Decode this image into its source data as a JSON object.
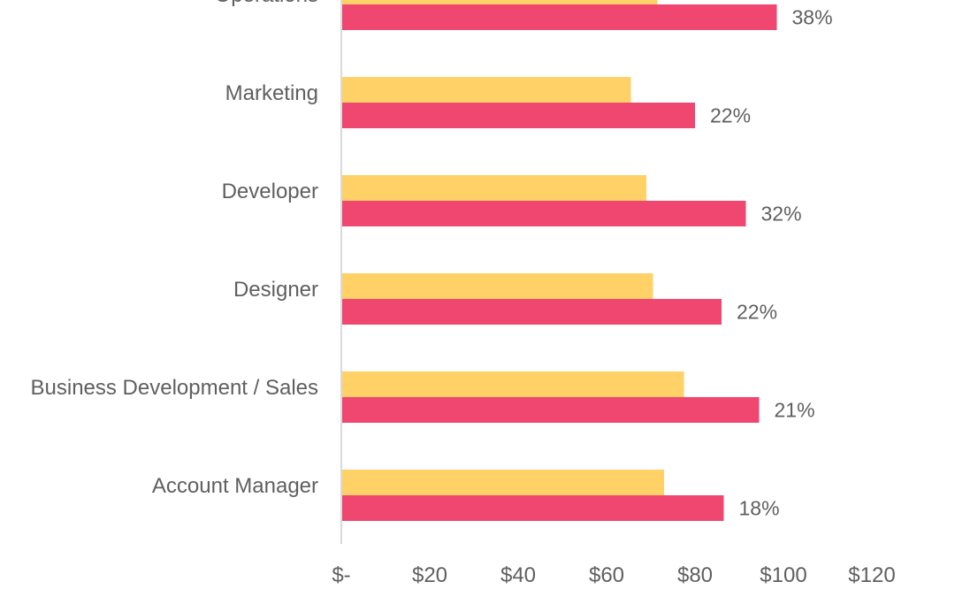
{
  "colors": {
    "series_a": "#FFD166",
    "series_b": "#EF476F",
    "axis": "#D9D9D9",
    "text": "#5F5F5F"
  },
  "chart_data": {
    "type": "bar",
    "orientation": "horizontal",
    "categories": [
      "Operations",
      "Marketing",
      "Developer",
      "Designer",
      "Business Development / Sales",
      "Account Manager"
    ],
    "series": [
      {
        "values": [
          71.5,
          65.5,
          69,
          70.5,
          77.5,
          73
        ]
      },
      {
        "values": [
          98.5,
          80,
          91.5,
          86,
          94.5,
          86.5
        ],
        "data_labels": [
          "38%",
          "22%",
          "32%",
          "22%",
          "21%",
          "18%"
        ]
      }
    ],
    "x_ticks": [
      0,
      20,
      40,
      60,
      80,
      100,
      120
    ],
    "x_tick_labels": [
      "$-",
      "$20",
      "$40",
      "$60",
      "$80",
      "$100",
      "$120"
    ],
    "xlim": [
      0,
      120
    ],
    "grid": false,
    "legend": "none"
  }
}
